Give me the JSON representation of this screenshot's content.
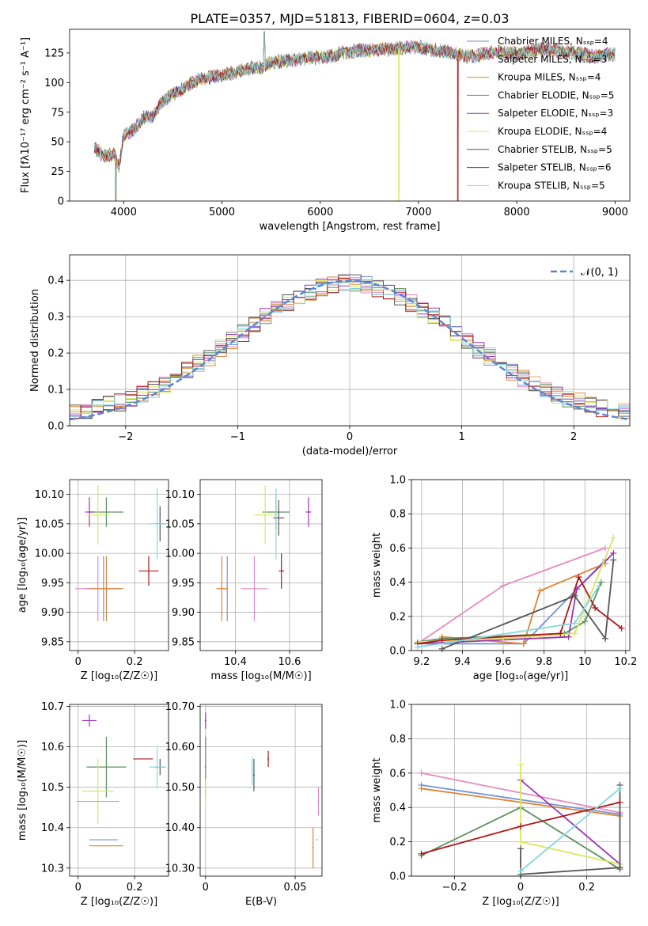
{
  "palette": [
    "#6f95d8",
    "#e68ac2",
    "#e0832e",
    "#5f8f63",
    "#9a35b8",
    "#d8e85a",
    "#555555",
    "#b01818",
    "#86d8de"
  ],
  "chart_data": [
    {
      "id": "spectrum",
      "type": "line",
      "title": "PLATE=0357, MJD=51813, FIBERID=0604, z=0.03",
      "xlabel": "wavelength [Angstrom, rest frame]",
      "ylabel": "Flux [fλ10⁻¹⁷ erg cm⁻² s⁻¹ A⁻¹]",
      "xlim": [
        3450,
        9150
      ],
      "ylim": [
        0,
        145
      ],
      "xticks": [
        4000,
        5000,
        6000,
        7000,
        8000,
        9000
      ],
      "yticks": [
        0,
        25,
        50,
        75,
        100,
        125
      ],
      "legend_position": "top-right",
      "series": [
        {
          "name": "Chabrier MILES, Nₛₛₚ=4"
        },
        {
          "name": "Salpeter MILES, Nₛₛₚ=3"
        },
        {
          "name": "Kroupa MILES, Nₛₛₚ=4"
        },
        {
          "name": "Chabrier ELODIE, Nₛₛₚ=5"
        },
        {
          "name": "Salpeter ELODIE, Nₛₛₚ=3"
        },
        {
          "name": "Kroupa ELODIE, Nₛₛₚ=4"
        },
        {
          "name": "Chabrier STELIB, Nₛₛₚ=5"
        },
        {
          "name": "Salpeter STELIB, Nₛₛₚ=6"
        },
        {
          "name": "Kroupa STELIB, Nₛₛₚ=5"
        }
      ],
      "continuum": [
        [
          3700,
          45
        ],
        [
          3800,
          38
        ],
        [
          3900,
          40
        ],
        [
          3950,
          28
        ],
        [
          4000,
          55
        ],
        [
          4100,
          60
        ],
        [
          4200,
          70
        ],
        [
          4300,
          72
        ],
        [
          4400,
          85
        ],
        [
          4500,
          90
        ],
        [
          4600,
          95
        ],
        [
          4700,
          100
        ],
        [
          4800,
          103
        ],
        [
          4900,
          105
        ],
        [
          5000,
          106
        ],
        [
          5100,
          108
        ],
        [
          5200,
          110
        ],
        [
          5300,
          112
        ],
        [
          5400,
          113
        ],
        [
          5500,
          117
        ],
        [
          5600,
          118
        ],
        [
          5700,
          119
        ],
        [
          5800,
          120
        ],
        [
          5900,
          121
        ],
        [
          6000,
          121
        ],
        [
          6100,
          122
        ],
        [
          6200,
          125
        ],
        [
          6300,
          126
        ],
        [
          6400,
          127
        ],
        [
          6500,
          127
        ],
        [
          6600,
          128
        ],
        [
          6700,
          128
        ],
        [
          6800,
          129
        ],
        [
          6900,
          130
        ],
        [
          7000,
          130
        ],
        [
          7100,
          128
        ],
        [
          7200,
          127
        ],
        [
          7300,
          126
        ],
        [
          7400,
          124
        ],
        [
          7500,
          122
        ],
        [
          7600,
          123
        ],
        [
          7700,
          125
        ],
        [
          7800,
          126
        ],
        [
          7900,
          125
        ],
        [
          8000,
          124
        ],
        [
          8100,
          126
        ],
        [
          8200,
          128
        ],
        [
          8300,
          128
        ],
        [
          8400,
          127
        ],
        [
          8500,
          126
        ],
        [
          8600,
          125
        ],
        [
          8700,
          124
        ],
        [
          8800,
          122
        ],
        [
          8900,
          124
        ],
        [
          9000,
          124
        ]
      ],
      "dropouts": [
        {
          "series": 5,
          "x": 6800
        },
        {
          "series": 7,
          "x": 7400
        },
        {
          "series": 3,
          "x": 3920
        }
      ],
      "peak": {
        "x": 5430,
        "y": 143
      }
    },
    {
      "id": "residuals",
      "type": "line",
      "xlabel": "(data-model)/error",
      "ylabel": "Normed distribution",
      "xlim": [
        -2.5,
        2.5
      ],
      "ylim": [
        0,
        0.47
      ],
      "xticks": [
        -2,
        -1,
        0,
        1,
        2
      ],
      "yticks": [
        0.0,
        0.1,
        0.2,
        0.3,
        0.4
      ],
      "legend_position": "top-right",
      "reference_curve": {
        "name": "𝒩(0, 1)",
        "mean": 0,
        "std": 1,
        "color": "#5a86d6",
        "style": "dashed"
      },
      "bin_width": 0.1
    },
    {
      "id": "age-vs-Z",
      "type": "scatter",
      "xlabel": "Z [log₁₀(Z/Z☉)]",
      "ylabel": "age  [log₁₀(age/yr)]",
      "xlim": [
        -0.03,
        0.32
      ],
      "ylim": [
        9.835,
        10.125
      ],
      "xticks": [
        0.0,
        0.2
      ],
      "yticks": [
        9.85,
        9.9,
        9.95,
        10.0,
        10.05,
        10.1
      ],
      "points": [
        {
          "x": 0.09,
          "y": 9.94,
          "ex": 0.07,
          "ey": 0.055,
          "c": 0
        },
        {
          "x": 0.07,
          "y": 9.94,
          "ex": 0.08,
          "ey": 0.055,
          "c": 1
        },
        {
          "x": 0.1,
          "y": 9.94,
          "ex": 0.06,
          "ey": 0.055,
          "c": 2
        },
        {
          "x": 0.1,
          "y": 10.07,
          "ex": 0.06,
          "ey": 0.025,
          "c": 3
        },
        {
          "x": 0.04,
          "y": 10.07,
          "ex": 0.015,
          "ey": 0.025,
          "c": 4
        },
        {
          "x": 0.07,
          "y": 10.065,
          "ex": 0.04,
          "ey": 0.05,
          "c": 5
        },
        {
          "x": 0.29,
          "y": 10.05,
          "ex": 0.02,
          "ey": 0.03,
          "c": 6
        },
        {
          "x": 0.25,
          "y": 9.97,
          "ex": 0.035,
          "ey": 0.025,
          "c": 7
        },
        {
          "x": 0.28,
          "y": 10.05,
          "ex": 0.03,
          "ey": 0.06,
          "c": 8
        }
      ]
    },
    {
      "id": "age-vs-mass",
      "type": "scatter",
      "xlabel": "mass [log₁₀(M/M☉)]",
      "ylabel": "",
      "xlim": [
        10.27,
        10.72
      ],
      "ylim": [
        9.835,
        10.125
      ],
      "xticks": [
        10.4,
        10.6
      ],
      "yticks": [
        9.85,
        9.9,
        9.95,
        10.0,
        10.05,
        10.1
      ],
      "points": [
        {
          "x": 10.37,
          "y": 9.94,
          "ex": 0.0,
          "ey": 0.055,
          "c": 0
        },
        {
          "x": 10.47,
          "y": 9.94,
          "ex": 0.05,
          "ey": 0.055,
          "c": 1
        },
        {
          "x": 10.35,
          "y": 9.94,
          "ex": 0.02,
          "ey": 0.055,
          "c": 2
        },
        {
          "x": 10.55,
          "y": 10.07,
          "ex": 0.05,
          "ey": 0.03,
          "c": 3
        },
        {
          "x": 10.67,
          "y": 10.07,
          "ex": 0.01,
          "ey": 0.025,
          "c": 4
        },
        {
          "x": 10.51,
          "y": 10.065,
          "ex": 0.04,
          "ey": 0.05,
          "c": 5
        },
        {
          "x": 10.56,
          "y": 10.06,
          "ex": 0.02,
          "ey": 0.03,
          "c": 6
        },
        {
          "x": 10.57,
          "y": 9.97,
          "ex": 0.01,
          "ey": 0.03,
          "c": 7
        },
        {
          "x": 10.55,
          "y": 10.05,
          "ex": 0.0,
          "ey": 0.06,
          "c": 8
        }
      ]
    },
    {
      "id": "weight-vs-age",
      "type": "line",
      "xlabel": "age  [log₁₀(age/yr)]",
      "ylabel": "mass weight",
      "xlim": [
        9.15,
        10.22
      ],
      "ylim": [
        0,
        1.0
      ],
      "xticks": [
        9.2,
        9.4,
        9.6,
        9.8,
        10.0,
        10.2
      ],
      "yticks": [
        0.0,
        0.2,
        0.4,
        0.6,
        0.8,
        1.0
      ],
      "series": [
        {
          "c": 0,
          "x": [
            9.18,
            9.7,
            10.1
          ],
          "y": [
            0.04,
            0.04,
            0.53
          ]
        },
        {
          "c": 1,
          "x": [
            9.18,
            9.6,
            10.1
          ],
          "y": [
            0.04,
            0.38,
            0.6
          ]
        },
        {
          "c": 2,
          "x": [
            9.3,
            9.7,
            9.78,
            10.1
          ],
          "y": [
            0.08,
            0.04,
            0.35,
            0.51
          ]
        },
        {
          "c": 3,
          "x": [
            9.18,
            9.3,
            9.9,
            10.0,
            10.08
          ],
          "y": [
            0.05,
            0.07,
            0.1,
            0.17,
            0.4
          ]
        },
        {
          "c": 4,
          "x": [
            9.18,
            9.92,
            9.96,
            10.14
          ],
          "y": [
            0.04,
            0.08,
            0.36,
            0.57
          ]
        },
        {
          "c": 5,
          "x": [
            9.18,
            9.6,
            9.95,
            10.14
          ],
          "y": [
            0.05,
            0.07,
            0.1,
            0.66
          ]
        },
        {
          "c": 6,
          "x": [
            9.3,
            9.95,
            10.1,
            10.14
          ],
          "y": [
            0.01,
            0.32,
            0.07,
            0.53
          ]
        },
        {
          "c": 7,
          "x": [
            9.18,
            9.3,
            9.88,
            9.97,
            10.05,
            10.18
          ],
          "y": [
            0.04,
            0.06,
            0.1,
            0.43,
            0.25,
            0.13
          ]
        },
        {
          "c": 8,
          "x": [
            9.18,
            9.95,
            10.07
          ],
          "y": [
            0.02,
            0.16,
            0.38
          ]
        }
      ]
    },
    {
      "id": "mass-vs-Z",
      "type": "scatter",
      "xlabel": "Z [log₁₀(Z/Z☉)]",
      "ylabel": "mass [log₁₀(M/M☉)]",
      "xlim": [
        -0.03,
        0.32
      ],
      "ylim": [
        10.28,
        10.705
      ],
      "xticks": [
        0.0,
        0.2
      ],
      "yticks": [
        10.3,
        10.4,
        10.5,
        10.6,
        10.7
      ],
      "points": [
        {
          "x": 0.09,
          "y": 10.37,
          "ex": 0.05,
          "ey": 0.0,
          "c": 0
        },
        {
          "x": 0.07,
          "y": 10.465,
          "ex": 0.075,
          "ey": 0.0,
          "c": 1
        },
        {
          "x": 0.1,
          "y": 10.355,
          "ex": 0.06,
          "ey": 0.0,
          "c": 2
        },
        {
          "x": 0.1,
          "y": 10.55,
          "ex": 0.07,
          "ey": 0.075,
          "c": 3
        },
        {
          "x": 0.04,
          "y": 10.665,
          "ex": 0.025,
          "ey": 0.015,
          "c": 4
        },
        {
          "x": 0.07,
          "y": 10.49,
          "ex": 0.055,
          "ey": 0.08,
          "c": 5
        },
        {
          "x": 0.29,
          "y": 10.55,
          "ex": 0.02,
          "ey": 0.02,
          "c": 6
        },
        {
          "x": 0.23,
          "y": 10.57,
          "ex": 0.035,
          "ey": 0.0,
          "c": 7
        },
        {
          "x": 0.28,
          "y": 10.55,
          "ex": 0.03,
          "ey": 0.05,
          "c": 8
        }
      ]
    },
    {
      "id": "mass-vs-EBV",
      "type": "scatter",
      "xlabel": "E(B-V)",
      "ylabel": "",
      "xlim": [
        -0.003,
        0.065
      ],
      "ylim": [
        10.28,
        10.705
      ],
      "xticks": [
        0.0,
        0.05
      ],
      "yticks": [
        10.3,
        10.4,
        10.5,
        10.6,
        10.7
      ],
      "points": [
        {
          "x": 0.062,
          "y": 10.37,
          "ex": 0,
          "ey": 0.0,
          "c": 0
        },
        {
          "x": 0.063,
          "y": 10.465,
          "ex": 0,
          "ey": 0.035,
          "c": 1
        },
        {
          "x": 0.06,
          "y": 10.35,
          "ex": 0,
          "ey": 0.05,
          "c": 2
        },
        {
          "x": 0.0,
          "y": 10.55,
          "ex": 0,
          "ey": 0.075,
          "c": 3
        },
        {
          "x": 0.0,
          "y": 10.665,
          "ex": 0,
          "ey": 0.02,
          "c": 4
        },
        {
          "x": 0.0,
          "y": 10.49,
          "ex": 0,
          "ey": 0.03,
          "c": 5
        },
        {
          "x": 0.035,
          "y": 10.57,
          "ex": 0,
          "ey": 0.02,
          "c": 7
        },
        {
          "x": 0.026,
          "y": 10.54,
          "ex": 0,
          "ey": 0.035,
          "c": 8
        },
        {
          "x": 0.027,
          "y": 10.53,
          "ex": 0,
          "ey": 0.04,
          "c": 6
        }
      ]
    },
    {
      "id": "weight-vs-Z",
      "type": "line",
      "xlabel": "Z [log₁₀(Z/Z☉)]",
      "ylabel": "mass weight",
      "xlim": [
        -0.33,
        0.33
      ],
      "ylim": [
        0,
        1.0
      ],
      "xticks": [
        -0.2,
        0.0,
        0.2
      ],
      "yticks": [
        0.0,
        0.2,
        0.4,
        0.6,
        0.8,
        1.0
      ],
      "series": [
        {
          "c": 0,
          "x": [
            -0.3,
            0.3
          ],
          "y": [
            0.53,
            0.36
          ]
        },
        {
          "c": 1,
          "x": [
            -0.3,
            0.3
          ],
          "y": [
            0.6,
            0.37
          ]
        },
        {
          "c": 2,
          "x": [
            -0.3,
            0.3
          ],
          "y": [
            0.51,
            0.35
          ]
        },
        {
          "c": 3,
          "x": [
            -0.3,
            0.0,
            0.3
          ],
          "y": [
            0.12,
            0.4,
            0.04
          ]
        },
        {
          "c": 4,
          "x": [
            0.0,
            0.3,
            0.3
          ],
          "y": [
            0.56,
            0.07,
            0.05
          ]
        },
        {
          "c": 5,
          "x": [
            0.0,
            0.0,
            0.3
          ],
          "y": [
            0.65,
            0.2,
            0.07
          ]
        },
        {
          "c": 6,
          "x": [
            0.0,
            0.0,
            0.3,
            0.3
          ],
          "y": [
            0.16,
            0.01,
            0.05,
            0.53
          ]
        },
        {
          "c": 7,
          "x": [
            -0.3,
            0.0,
            0.3
          ],
          "y": [
            0.13,
            0.29,
            0.43
          ]
        },
        {
          "c": 8,
          "x": [
            0.0,
            0.3
          ],
          "y": [
            0.03,
            0.51
          ]
        }
      ]
    }
  ]
}
